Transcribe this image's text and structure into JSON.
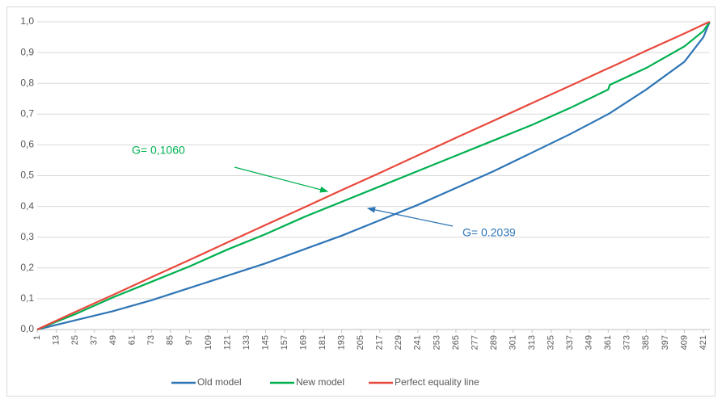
{
  "chart_data": {
    "type": "line",
    "x": [
      1,
      25,
      49,
      73,
      97,
      121,
      145,
      169,
      193,
      217,
      241,
      265,
      289,
      313,
      337,
      361,
      362,
      385,
      409,
      421,
      425
    ],
    "series": [
      {
        "name": "Old model",
        "color": "#2e75b6",
        "values": [
          0,
          0.03,
          0.06,
          0.095,
          0.135,
          0.175,
          0.215,
          0.26,
          0.305,
          0.355,
          0.405,
          0.46,
          0.515,
          0.575,
          0.635,
          0.7,
          0.703,
          0.78,
          0.87,
          0.95,
          1.0
        ]
      },
      {
        "name": "New model",
        "color": "#00b050",
        "values": [
          0,
          0.05,
          0.105,
          0.155,
          0.205,
          0.26,
          0.31,
          0.365,
          0.415,
          0.465,
          0.515,
          0.565,
          0.615,
          0.665,
          0.72,
          0.78,
          0.795,
          0.85,
          0.92,
          0.97,
          1.0
        ]
      },
      {
        "name": "Perfect equality line",
        "color": "#e8483c",
        "values": [
          0,
          0.057,
          0.113,
          0.17,
          0.226,
          0.283,
          0.34,
          0.396,
          0.453,
          0.509,
          0.566,
          0.623,
          0.679,
          0.736,
          0.792,
          0.849,
          0.851,
          0.906,
          0.962,
          0.991,
          1.0
        ]
      }
    ],
    "xlim": [
      1,
      425
    ],
    "xticks": [
      1,
      13,
      25,
      37,
      49,
      61,
      73,
      85,
      97,
      109,
      121,
      133,
      145,
      157,
      169,
      181,
      193,
      205,
      217,
      229,
      241,
      253,
      265,
      277,
      289,
      301,
      313,
      325,
      337,
      349,
      361,
      373,
      385,
      397,
      409,
      421
    ],
    "ylim": [
      0,
      1
    ],
    "yticks": [
      {
        "value": 0,
        "label": "0,0"
      },
      {
        "value": 0.1,
        "label": "0,1"
      },
      {
        "value": 0.2,
        "label": "0,2"
      },
      {
        "value": 0.3,
        "label": "0,3"
      },
      {
        "value": 0.4,
        "label": "0,4"
      },
      {
        "value": 0.5,
        "label": "0,5"
      },
      {
        "value": 0.6,
        "label": "0,6"
      },
      {
        "value": 0.7,
        "label": "0,7"
      },
      {
        "value": 0.8,
        "label": "0,8"
      },
      {
        "value": 0.9,
        "label": "0,9"
      },
      {
        "value": 1.0,
        "label": "1,0"
      }
    ],
    "grid": true,
    "legend": "bottom",
    "annotations": [
      {
        "text": "G= 0,1060",
        "color": "#00b050"
      },
      {
        "text": "G= 0.2039",
        "color": "#2e75b6"
      }
    ]
  }
}
